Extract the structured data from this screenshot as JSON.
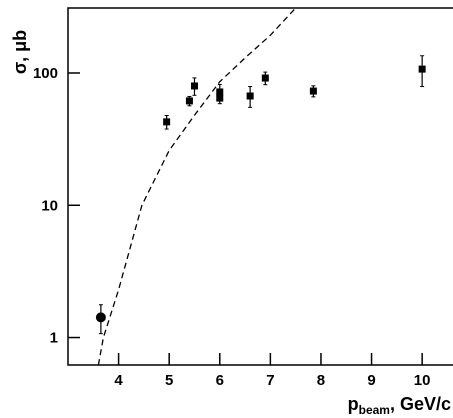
{
  "chart_data": {
    "type": "scatter",
    "y_label": "σ, μb",
    "x_label": {
      "main": "p",
      "sub": "beam",
      "rest": ", GeV/c"
    },
    "xlim": [
      3,
      10.6
    ],
    "xticks": [
      4,
      5,
      6,
      7,
      8,
      9,
      10
    ],
    "ylim": [
      0.62,
      310
    ],
    "yticks": [
      1,
      10,
      100
    ],
    "log_y": true,
    "color": "#000000",
    "points": {
      "x": [
        3.65,
        4.95,
        5.4,
        5.5,
        6.0,
        6.0,
        6.6,
        6.9,
        7.85,
        10.0
      ],
      "values": [
        1.42,
        42.7,
        61.5,
        79.8,
        71.9,
        64.6,
        67,
        91.6,
        73,
        107
      ],
      "errors": [
        0.35,
        5,
        5,
        12,
        10,
        6,
        12,
        10,
        7,
        28
      ],
      "markers": [
        "circle",
        "square",
        "square",
        "square",
        "square",
        "square",
        "square",
        "square",
        "square",
        "square"
      ]
    },
    "curve": {
      "x": [
        3.6,
        3.7,
        4.0,
        4.46,
        5.0,
        5.5,
        6.0,
        6.5,
        7.0,
        7.5
      ],
      "values": [
        0.62,
        1,
        2.3,
        10,
        26,
        48,
        86,
        130,
        193,
        310
      ],
      "style": "dashed"
    }
  }
}
